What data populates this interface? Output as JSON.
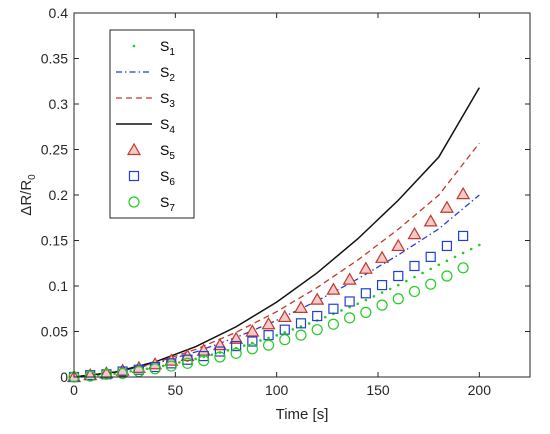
{
  "chart_data": {
    "type": "line",
    "title": "",
    "xlabel": "Time [s]",
    "ylabel_main": "ΔR/R",
    "ylabel_sub": "0",
    "xlim": [
      0,
      225
    ],
    "ylim": [
      0,
      0.4
    ],
    "x_ticks": [
      0,
      50,
      100,
      150,
      200
    ],
    "x_tick_labels": [
      "0",
      "50",
      "100",
      "150",
      "200"
    ],
    "y_ticks": [
      0,
      0.05,
      0.1,
      0.15,
      0.2,
      0.25,
      0.3,
      0.35,
      0.4
    ],
    "y_tick_labels": [
      "0",
      "0.05",
      "0.1",
      "0.15",
      "0.2",
      "0.25",
      "0.3",
      "0.35",
      "0.4"
    ],
    "grid": false,
    "legend_position": "top-left",
    "series": [
      {
        "name_main": "S",
        "name_sub": "1",
        "kind": "dots",
        "color": "#22cc22",
        "x": [
          0,
          20,
          40,
          60,
          80,
          100,
          120,
          140,
          160,
          180,
          200
        ],
        "y": [
          0,
          0.0036,
          0.0104,
          0.0198,
          0.0317,
          0.0458,
          0.0621,
          0.0805,
          0.1009,
          0.1233,
          0.145
        ]
      },
      {
        "name_main": "S",
        "name_sub": "2",
        "kind": "dashdot",
        "color": "#1f3fd6",
        "x": [
          0,
          20,
          40,
          60,
          80,
          100,
          120,
          140,
          160,
          180,
          200
        ],
        "y": [
          0,
          0.005,
          0.0146,
          0.0275,
          0.0435,
          0.0623,
          0.0837,
          0.1077,
          0.1341,
          0.1628,
          0.2
        ]
      },
      {
        "name_main": "S",
        "name_sub": "3",
        "kind": "dashed",
        "color": "#c0392b",
        "x": [
          0,
          20,
          40,
          60,
          80,
          100,
          120,
          140,
          160,
          180,
          200
        ],
        "y": [
          0,
          0.0051,
          0.0155,
          0.0303,
          0.0491,
          0.0718,
          0.0983,
          0.1285,
          0.1624,
          0.1998,
          0.257
        ]
      },
      {
        "name_main": "S",
        "name_sub": "4",
        "kind": "solid",
        "color": "#111111",
        "x": [
          0,
          20,
          40,
          60,
          80,
          100,
          120,
          140,
          160,
          180,
          200
        ],
        "y": [
          0,
          0.0053,
          0.0166,
          0.0333,
          0.0552,
          0.0823,
          0.1145,
          0.1518,
          0.1942,
          0.2417,
          0.318
        ]
      },
      {
        "name_main": "S",
        "name_sub": "5",
        "kind": "triangle",
        "color": "#c0392b",
        "fill": "#f3c9c9",
        "x": [
          0,
          8,
          16,
          24,
          32,
          40,
          48,
          56,
          64,
          72,
          80,
          88,
          96,
          104,
          112,
          120,
          128,
          136,
          144,
          152,
          160,
          168,
          176,
          184,
          192
        ],
        "y": [
          0.0,
          0.002,
          0.004,
          0.007,
          0.01,
          0.014,
          0.018,
          0.023,
          0.029,
          0.035,
          0.042,
          0.05,
          0.058,
          0.066,
          0.076,
          0.085,
          0.096,
          0.107,
          0.119,
          0.131,
          0.144,
          0.157,
          0.171,
          0.186,
          0.201
        ]
      },
      {
        "name_main": "S",
        "name_sub": "6",
        "kind": "square",
        "color": "#1f3fd6",
        "fill": "none",
        "x": [
          0,
          8,
          16,
          24,
          32,
          40,
          48,
          56,
          64,
          72,
          80,
          88,
          96,
          104,
          112,
          120,
          128,
          136,
          144,
          152,
          160,
          168,
          176,
          184,
          192
        ],
        "y": [
          0.0,
          0.002,
          0.003,
          0.006,
          0.008,
          0.011,
          0.015,
          0.019,
          0.023,
          0.028,
          0.034,
          0.039,
          0.046,
          0.052,
          0.059,
          0.067,
          0.075,
          0.083,
          0.092,
          0.101,
          0.111,
          0.122,
          0.132,
          0.144,
          0.155
        ]
      },
      {
        "name_main": "S",
        "name_sub": "7",
        "kind": "circle",
        "color": "#22cc22",
        "fill": "none",
        "x": [
          0,
          8,
          16,
          24,
          32,
          40,
          48,
          56,
          64,
          72,
          80,
          88,
          96,
          104,
          112,
          120,
          128,
          136,
          144,
          152,
          160,
          168,
          176,
          184,
          192
        ],
        "y": [
          0.0,
          0.001,
          0.003,
          0.004,
          0.006,
          0.009,
          0.012,
          0.015,
          0.018,
          0.022,
          0.026,
          0.031,
          0.035,
          0.041,
          0.046,
          0.052,
          0.058,
          0.065,
          0.071,
          0.079,
          0.086,
          0.094,
          0.102,
          0.111,
          0.12
        ]
      }
    ]
  }
}
